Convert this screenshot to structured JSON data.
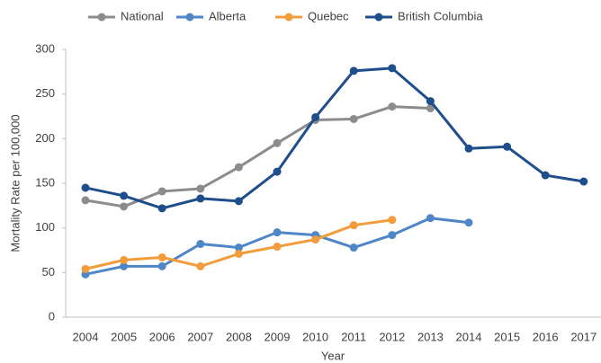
{
  "chart_data": {
    "type": "line",
    "categories": [
      "2004",
      "2005",
      "2006",
      "2007",
      "2008",
      "2009",
      "2010",
      "2011",
      "2012",
      "2013",
      "2014",
      "2015",
      "2016",
      "2017"
    ],
    "series": [
      {
        "name": "National",
        "color": "#8c8c8c",
        "values": [
          131,
          124,
          141,
          144,
          168,
          195,
          221,
          222,
          236,
          234,
          null,
          null,
          null,
          null
        ]
      },
      {
        "name": "Alberta",
        "color": "#4f86c6",
        "values": [
          48,
          57,
          57,
          82,
          78,
          95,
          92,
          78,
          92,
          111,
          106,
          null,
          null,
          null
        ]
      },
      {
        "name": "Quebec",
        "color": "#f39c3c",
        "values": [
          54,
          64,
          67,
          57,
          71,
          79,
          87,
          103,
          109,
          null,
          null,
          null,
          null,
          null
        ]
      },
      {
        "name": "British Columbia",
        "color": "#1f4e8c",
        "values": [
          145,
          136,
          122,
          133,
          130,
          163,
          224,
          276,
          279,
          242,
          189,
          191,
          159,
          152
        ]
      }
    ],
    "ylabel": "Mortality Rate per 100,000",
    "xlabel": "Year",
    "ylim": [
      0,
      300
    ],
    "yticks": [
      0,
      50,
      100,
      150,
      200,
      250,
      300
    ],
    "legend": "top"
  }
}
